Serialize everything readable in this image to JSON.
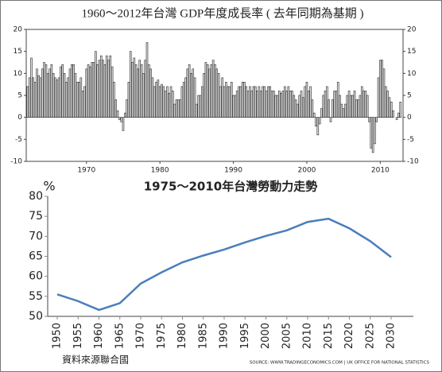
{
  "chart_data": [
    {
      "type": "bar",
      "title": "1960～2012年台灣 GDP年度成長率 ( 去年同期為基期 )",
      "x": [
        1962,
        1962.25,
        1962.5,
        1962.75,
        1963,
        1963.25,
        1963.5,
        1963.75,
        1964,
        1964.25,
        1964.5,
        1964.75,
        1965,
        1965.25,
        1965.5,
        1965.75,
        1966,
        1966.25,
        1966.5,
        1966.75,
        1967,
        1967.25,
        1967.5,
        1967.75,
        1968,
        1968.25,
        1968.5,
        1968.75,
        1969,
        1969.25,
        1969.5,
        1969.75,
        1970,
        1970.25,
        1970.5,
        1970.75,
        1971,
        1971.25,
        1971.5,
        1971.75,
        1972,
        1972.25,
        1972.5,
        1972.75,
        1973,
        1973.25,
        1973.5,
        1973.75,
        1974,
        1974.25,
        1974.5,
        1974.75,
        1975,
        1975.25,
        1975.5,
        1975.75,
        1976,
        1976.25,
        1976.5,
        1976.75,
        1977,
        1977.25,
        1977.5,
        1977.75,
        1978,
        1978.25,
        1978.5,
        1978.75,
        1979,
        1979.25,
        1979.5,
        1979.75,
        1980,
        1980.25,
        1980.5,
        1980.75,
        1981,
        1981.25,
        1981.5,
        1981.75,
        1982,
        1982.25,
        1982.5,
        1982.75,
        1983,
        1983.25,
        1983.5,
        1983.75,
        1984,
        1984.25,
        1984.5,
        1984.75,
        1985,
        1985.25,
        1985.5,
        1985.75,
        1986,
        1986.25,
        1986.5,
        1986.75,
        1987,
        1987.25,
        1987.5,
        1987.75,
        1988,
        1988.25,
        1988.5,
        1988.75,
        1989,
        1989.25,
        1989.5,
        1989.75,
        1990,
        1990.25,
        1990.5,
        1990.75,
        1991,
        1991.25,
        1991.5,
        1991.75,
        1992,
        1992.25,
        1992.5,
        1992.75,
        1993,
        1993.25,
        1993.5,
        1993.75,
        1994,
        1994.25,
        1994.5,
        1994.75,
        1995,
        1995.25,
        1995.5,
        1995.75,
        1996,
        1996.25,
        1996.5,
        1996.75,
        1997,
        1997.25,
        1997.5,
        1997.75,
        1998,
        1998.25,
        1998.5,
        1998.75,
        1999,
        1999.25,
        1999.5,
        1999.75,
        2000,
        2000.25,
        2000.5,
        2000.75,
        2001,
        2001.25,
        2001.5,
        2001.75,
        2002,
        2002.25,
        2002.5,
        2002.75,
        2003,
        2003.25,
        2003.5,
        2003.75,
        2004,
        2004.25,
        2004.5,
        2004.75,
        2005,
        2005.25,
        2005.5,
        2005.75,
        2006,
        2006.25,
        2006.5,
        2006.75,
        2007,
        2007.25,
        2007.5,
        2007.75,
        2008,
        2008.25,
        2008.5,
        2008.75,
        2009,
        2009.25,
        2009.5,
        2009.75,
        2010,
        2010.25,
        2010.5,
        2010.75,
        2011,
        2011.25,
        2011.5,
        2011.75,
        2012,
        2012.25,
        2012.5,
        2012.75
      ],
      "values": [
        7,
        9,
        13.5,
        9,
        8,
        11,
        9.5,
        9,
        11,
        12.5,
        12,
        10,
        11,
        12,
        10,
        9,
        8.5,
        9,
        11.5,
        12,
        10,
        8,
        9,
        11,
        12,
        12,
        10,
        8,
        8,
        9,
        6,
        7,
        11,
        12,
        11.5,
        12.5,
        12.5,
        15,
        12,
        13,
        14,
        13,
        12,
        14,
        13,
        14,
        11.5,
        8,
        4,
        1.5,
        -0.5,
        -1,
        -3,
        1,
        4,
        8,
        15,
        12.5,
        13.5,
        12,
        11,
        13,
        12,
        10,
        13,
        17,
        12,
        11,
        9,
        7,
        8,
        8.5,
        7,
        7.5,
        7,
        6,
        7,
        5.5,
        7,
        6,
        3,
        4,
        4,
        4,
        7,
        8,
        9,
        11,
        12,
        10,
        11,
        9,
        3,
        5,
        5,
        7,
        10,
        12.5,
        12,
        11,
        12,
        13,
        12,
        11,
        10,
        7,
        9,
        7,
        8,
        7,
        7,
        8,
        5,
        5,
        6,
        7,
        7,
        8,
        8,
        7,
        6,
        7,
        6,
        7,
        7,
        6,
        7,
        6,
        7,
        7,
        6,
        7,
        7,
        6,
        6,
        5,
        5,
        6,
        5.5,
        6,
        7,
        6,
        7,
        6,
        6,
        5,
        4,
        3,
        5,
        6,
        4.5,
        7,
        8,
        6,
        7,
        4,
        1,
        -2,
        -4,
        -1.5,
        2,
        5,
        6,
        7,
        4,
        -1,
        4,
        6,
        6,
        8,
        5,
        3,
        2,
        3,
        5,
        6,
        5,
        5,
        6,
        4,
        4,
        5,
        7,
        6,
        6,
        5,
        -1,
        -7,
        -8,
        -6,
        -1,
        9,
        13,
        13,
        11,
        7,
        6,
        4.5,
        3.5,
        1.5,
        0,
        -0.5,
        1,
        3.5
      ],
      "color": "#e6e6e6",
      "xlim": [
        1961.8,
        2013.1
      ],
      "xticks": [
        1970,
        1980,
        1990,
        2000,
        2010
      ],
      "ylim": [
        -10,
        20
      ],
      "yticks": [
        -10,
        -5,
        0,
        5,
        10,
        15,
        20
      ],
      "y2lim": [
        -10,
        20
      ],
      "y2ticks": [
        -10,
        -5,
        0,
        5,
        10,
        15,
        20
      ],
      "grid": false
    },
    {
      "type": "line",
      "title": "1975～2010年台灣勞動力走勢",
      "y_label": "%",
      "categories": [
        "1950",
        "1955",
        "1960",
        "1965",
        "1970",
        "1975",
        "1980",
        "1985",
        "1990",
        "1995",
        "2000",
        "2005",
        "2010",
        "2015",
        "2020",
        "2025",
        "2030"
      ],
      "values": [
        55.5,
        53.8,
        51.6,
        53.3,
        58.2,
        61,
        63.5,
        65.2,
        66.7,
        68.5,
        70.1,
        71.5,
        73.6,
        74.4,
        72,
        68.8,
        64.8
      ],
      "color": "#4a7ebb",
      "ylim": [
        50,
        80
      ],
      "yticks": [
        50,
        55,
        60,
        65,
        70,
        75,
        80
      ],
      "grid": false,
      "source_left": "資料來源聯合國",
      "source_right": "SOURCE: WWW.TRADINGECONOMICS.COM | UK OFFICE FOR NATIONAL STATISTICS"
    }
  ]
}
